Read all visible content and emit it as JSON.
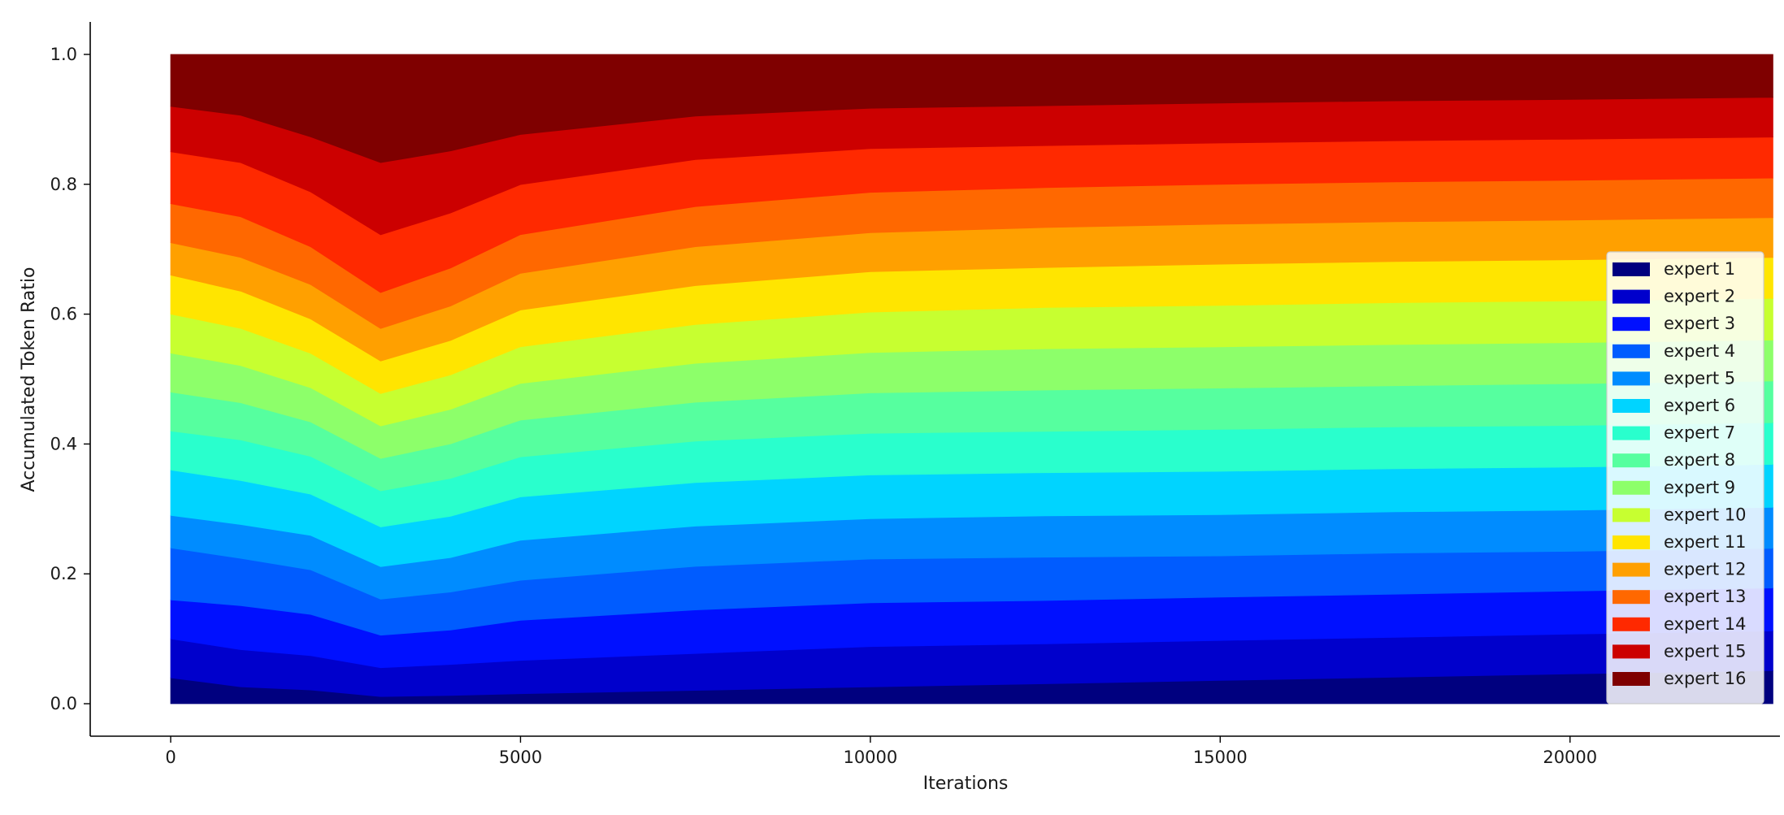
{
  "chart_data": {
    "type": "area",
    "stacked": true,
    "title": "",
    "xlabel": "Iterations",
    "ylabel": "Accumulated Token Ratio",
    "xlim": [
      -1150,
      23000
    ],
    "ylim": [
      -0.05,
      1.05
    ],
    "xticks": [
      0,
      5000,
      10000,
      15000,
      20000
    ],
    "xtick_labels": [
      "0",
      "5000",
      "10000",
      "15000",
      "20000"
    ],
    "yticks": [
      0.0,
      0.2,
      0.4,
      0.6,
      0.8,
      1.0
    ],
    "ytick_labels": [
      "0.0",
      "0.2",
      "0.4",
      "0.6",
      "0.8",
      "1.0"
    ],
    "grid": false,
    "legend_position": "center-right",
    "x": [
      0,
      1000,
      2000,
      3000,
      4000,
      5000,
      7500,
      10000,
      12500,
      15000,
      17500,
      20000,
      22900
    ],
    "series": [
      {
        "name": "expert 1",
        "color": "#00007f",
        "values": [
          0.04,
          0.025,
          0.02,
          0.01,
          0.012,
          0.015,
          0.02,
          0.025,
          0.03,
          0.035,
          0.04,
          0.045,
          0.05
        ]
      },
      {
        "name": "expert 2",
        "color": "#0000cc",
        "values": [
          0.06,
          0.055,
          0.05,
          0.04,
          0.045,
          0.05,
          0.055,
          0.06,
          0.06,
          0.06,
          0.06,
          0.06,
          0.06
        ]
      },
      {
        "name": "expert 3",
        "color": "#0010ff",
        "values": [
          0.06,
          0.065,
          0.06,
          0.045,
          0.05,
          0.06,
          0.065,
          0.065,
          0.065,
          0.065,
          0.065,
          0.065,
          0.065
        ]
      },
      {
        "name": "expert 4",
        "color": "#005cff",
        "values": [
          0.08,
          0.07,
          0.065,
          0.05,
          0.055,
          0.06,
          0.065,
          0.065,
          0.065,
          0.062,
          0.062,
          0.06,
          0.06
        ]
      },
      {
        "name": "expert 5",
        "color": "#008cff",
        "values": [
          0.05,
          0.05,
          0.05,
          0.045,
          0.05,
          0.06,
          0.06,
          0.06,
          0.062,
          0.062,
          0.062,
          0.062,
          0.062
        ]
      },
      {
        "name": "expert 6",
        "color": "#00d4ff",
        "values": [
          0.07,
          0.065,
          0.06,
          0.055,
          0.06,
          0.065,
          0.065,
          0.065,
          0.065,
          0.065,
          0.065,
          0.065,
          0.065
        ]
      },
      {
        "name": "expert 7",
        "color": "#29ffcd",
        "values": [
          0.06,
          0.06,
          0.055,
          0.05,
          0.055,
          0.06,
          0.062,
          0.062,
          0.062,
          0.063,
          0.063,
          0.063,
          0.063
        ]
      },
      {
        "name": "expert 8",
        "color": "#56ff9f",
        "values": [
          0.06,
          0.055,
          0.05,
          0.045,
          0.05,
          0.055,
          0.058,
          0.06,
          0.062,
          0.062,
          0.062,
          0.063,
          0.063
        ]
      },
      {
        "name": "expert 9",
        "color": "#8dff6a",
        "values": [
          0.06,
          0.055,
          0.05,
          0.045,
          0.05,
          0.055,
          0.058,
          0.06,
          0.062,
          0.062,
          0.062,
          0.062,
          0.062
        ]
      },
      {
        "name": "expert 10",
        "color": "#c7ff30",
        "values": [
          0.06,
          0.055,
          0.05,
          0.045,
          0.05,
          0.055,
          0.058,
          0.06,
          0.062,
          0.062,
          0.063,
          0.063,
          0.063
        ]
      },
      {
        "name": "expert 11",
        "color": "#ffe500",
        "values": [
          0.06,
          0.055,
          0.05,
          0.045,
          0.05,
          0.055,
          0.058,
          0.06,
          0.06,
          0.062,
          0.062,
          0.062,
          0.062
        ]
      },
      {
        "name": "expert 12",
        "color": "#ffa000",
        "values": [
          0.05,
          0.05,
          0.05,
          0.045,
          0.05,
          0.055,
          0.058,
          0.058,
          0.06,
          0.06,
          0.06,
          0.06,
          0.06
        ]
      },
      {
        "name": "expert 13",
        "color": "#ff6800",
        "values": [
          0.06,
          0.06,
          0.055,
          0.05,
          0.055,
          0.058,
          0.06,
          0.06,
          0.06,
          0.06,
          0.06,
          0.06,
          0.06
        ]
      },
      {
        "name": "expert 14",
        "color": "#ff2900",
        "values": [
          0.08,
          0.08,
          0.08,
          0.08,
          0.08,
          0.075,
          0.07,
          0.065,
          0.063,
          0.062,
          0.062,
          0.062,
          0.062
        ]
      },
      {
        "name": "expert 15",
        "color": "#cc0000",
        "values": [
          0.07,
          0.07,
          0.08,
          0.1,
          0.09,
          0.075,
          0.065,
          0.06,
          0.06,
          0.06,
          0.06,
          0.06,
          0.06
        ]
      },
      {
        "name": "expert 16",
        "color": "#7f0000",
        "values": [
          0.08,
          0.09,
          0.12,
          0.15,
          0.14,
          0.12,
          0.092,
          0.08,
          0.077,
          0.073,
          0.07,
          0.068,
          0.065
        ]
      }
    ]
  }
}
